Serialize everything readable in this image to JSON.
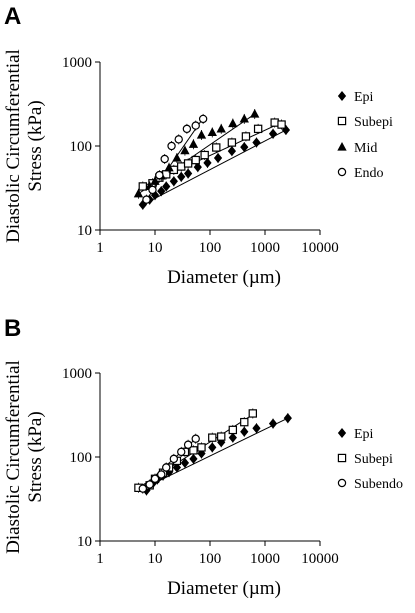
{
  "chart_data": [
    {
      "panel": "A",
      "type": "scatter",
      "title": "",
      "xlabel": "Diameter (µm)",
      "ylabel": "Diastolic Circumferential Stress (kPa)",
      "xscale": "log",
      "yscale": "log",
      "xlim": [
        1,
        10000
      ],
      "ylim": [
        10,
        1000
      ],
      "xticks": [
        "1",
        "10",
        "100",
        "1000",
        "10000"
      ],
      "yticks": [
        "10",
        "100",
        "1000"
      ],
      "grid": false,
      "legend": "right",
      "series": [
        {
          "name": "Epi",
          "marker": "diamond-filled",
          "x": [
            6,
            8,
            10,
            13,
            16,
            22,
            30,
            40,
            60,
            90,
            140,
            250,
            420,
            700,
            1400,
            2400
          ],
          "y": [
            20,
            23,
            26,
            29,
            33,
            38,
            43,
            47,
            56,
            63,
            72,
            87,
            97,
            110,
            140,
            155
          ]
        },
        {
          "name": "Subepi",
          "marker": "square-open",
          "x": [
            6,
            9,
            12,
            16,
            22,
            30,
            40,
            55,
            80,
            130,
            250,
            450,
            750,
            1500,
            2000
          ],
          "y": [
            33,
            36,
            42,
            46,
            52,
            57,
            62,
            68,
            78,
            96,
            110,
            130,
            160,
            190,
            180
          ]
        },
        {
          "name": "Mid",
          "marker": "triangle-filled",
          "x": [
            5,
            8,
            10,
            13,
            18,
            25,
            35,
            50,
            70,
            110,
            160,
            260,
            420,
            650
          ],
          "y": [
            27,
            33,
            38,
            44,
            55,
            72,
            88,
            105,
            135,
            145,
            160,
            185,
            210,
            240
          ]
        },
        {
          "name": "Endo",
          "marker": "circle-open",
          "x": [
            7,
            9,
            12,
            15,
            20,
            27,
            38,
            55,
            75
          ],
          "y": [
            23,
            30,
            45,
            70,
            100,
            120,
            160,
            175,
            210
          ]
        }
      ],
      "fits": [
        {
          "series": "Epi",
          "x": [
            6,
            2400
          ],
          "y": [
            20,
            155
          ]
        },
        {
          "series": "Subepi",
          "x": [
            6,
            2000
          ],
          "y": [
            33,
            190
          ]
        },
        {
          "series": "Mid",
          "x": [
            5,
            650
          ],
          "y": [
            27,
            240
          ]
        },
        {
          "series": "Endo",
          "x": [
            7,
            75
          ],
          "y": [
            23,
            215
          ]
        }
      ]
    },
    {
      "panel": "B",
      "type": "scatter",
      "title": "",
      "xlabel": "Diameter (µm)",
      "ylabel": "Diastolic Circumferential Stress (kPa)",
      "xscale": "log",
      "yscale": "log",
      "xlim": [
        1,
        10000
      ],
      "ylim": [
        10,
        1000
      ],
      "xticks": [
        "1",
        "10",
        "100",
        "1000",
        "10000"
      ],
      "yticks": [
        "10",
        "100",
        "1000"
      ],
      "grid": false,
      "legend": "right",
      "series": [
        {
          "name": "Epi",
          "marker": "diamond-filled",
          "x": [
            7,
            9,
            11,
            14,
            18,
            25,
            35,
            50,
            70,
            110,
            160,
            260,
            420,
            700,
            1400,
            2600
          ],
          "y": [
            40,
            48,
            54,
            60,
            66,
            75,
            85,
            95,
            110,
            130,
            150,
            170,
            200,
            220,
            250,
            290
          ]
        },
        {
          "name": "Subepi",
          "marker": "square-open",
          "x": [
            5,
            8,
            10,
            14,
            18,
            25,
            35,
            50,
            70,
            110,
            160,
            260,
            420,
            600
          ],
          "y": [
            43,
            46,
            55,
            65,
            75,
            90,
            115,
            120,
            130,
            170,
            175,
            210,
            260,
            330
          ]
        },
        {
          "name": "Subendo",
          "marker": "circle-open",
          "x": [
            6,
            8,
            10,
            13,
            16,
            22,
            30,
            40,
            55
          ],
          "y": [
            42,
            47,
            55,
            62,
            75,
            95,
            115,
            140,
            165
          ]
        }
      ],
      "fits": [
        {
          "series": "Epi",
          "x": [
            6,
            2600
          ],
          "y": [
            42,
            290
          ]
        },
        {
          "series": "Subepi",
          "x": [
            5,
            600
          ],
          "y": [
            43,
            320
          ]
        },
        {
          "series": "Subendo",
          "x": [
            6,
            55
          ],
          "y": [
            44,
            165
          ]
        }
      ]
    }
  ]
}
